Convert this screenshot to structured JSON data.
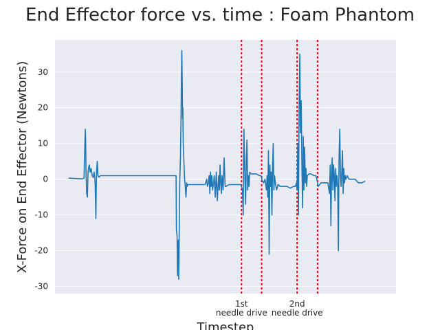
{
  "chart_data": {
    "type": "line",
    "title": "End Effector force vs. time : Foam Phantom",
    "xlabel": "Timestep",
    "ylabel": "X-Force on End Effector (Newtons)",
    "ylim": [
      -32,
      39
    ],
    "xlim": [
      0,
      1000
    ],
    "grid": true,
    "yticks": [
      30,
      20,
      10,
      0,
      -10,
      -20,
      -30
    ],
    "xtick_labels": [
      "1st\nneedle drive",
      "2nd\nneedle drive"
    ],
    "xtick_positions": [
      547,
      710
    ],
    "vlines": [
      547,
      606,
      710,
      770
    ],
    "vline_color": "#e8000b",
    "line_color": "#1f77b4",
    "background": "#eaeaf2",
    "series": [
      {
        "points": [
          [
            40,
            0.3
          ],
          [
            60,
            0.2
          ],
          [
            80,
            0.1
          ],
          [
            85,
            0.3
          ],
          [
            87,
            8
          ],
          [
            89,
            14
          ],
          [
            90,
            11
          ],
          [
            91,
            2
          ],
          [
            93,
            -4
          ],
          [
            95,
            -5
          ],
          [
            97,
            2
          ],
          [
            99,
            3.5
          ],
          [
            101,
            4
          ],
          [
            103,
            2
          ],
          [
            106,
            3
          ],
          [
            109,
            1
          ],
          [
            112,
            0.5
          ],
          [
            115,
            2
          ],
          [
            117,
            0
          ],
          [
            118,
            -2
          ],
          [
            120,
            -11
          ],
          [
            121,
            -2
          ],
          [
            122,
            2
          ],
          [
            124,
            5
          ],
          [
            126,
            1
          ],
          [
            129,
            0.6
          ],
          [
            133,
            1
          ],
          [
            180,
            1
          ],
          [
            240,
            1
          ],
          [
            300,
            1
          ],
          [
            350,
            1
          ],
          [
            355,
            1
          ],
          [
            356,
            -14
          ],
          [
            358,
            -16
          ],
          [
            359,
            -27
          ],
          [
            360,
            -18
          ],
          [
            362,
            -17
          ],
          [
            363,
            -28
          ],
          [
            364,
            -20
          ],
          [
            365,
            -8
          ],
          [
            366,
            0
          ],
          [
            368,
            6
          ],
          [
            370,
            20
          ],
          [
            371,
            30
          ],
          [
            372,
            36
          ],
          [
            373,
            28
          ],
          [
            374,
            17
          ],
          [
            375,
            20
          ],
          [
            376,
            10
          ],
          [
            378,
            5
          ],
          [
            380,
            0
          ],
          [
            382,
            -2
          ],
          [
            384,
            -5
          ],
          [
            386,
            -1
          ],
          [
            388,
            -2
          ],
          [
            390,
            -1.5
          ],
          [
            400,
            -1.5
          ],
          [
            420,
            -1.5
          ],
          [
            440,
            -1.5
          ],
          [
            445,
            0
          ],
          [
            447,
            -2
          ],
          [
            450,
            -1
          ],
          [
            452,
            1
          ],
          [
            454,
            -4
          ],
          [
            456,
            2
          ],
          [
            458,
            -2
          ],
          [
            460,
            1
          ],
          [
            462,
            -3
          ],
          [
            465,
            -1
          ],
          [
            467,
            1
          ],
          [
            470,
            -5
          ],
          [
            473,
            2
          ],
          [
            476,
            -6
          ],
          [
            478,
            -2
          ],
          [
            480,
            1
          ],
          [
            482,
            -3
          ],
          [
            484,
            4
          ],
          [
            486,
            -1
          ],
          [
            488,
            -4
          ],
          [
            490,
            1
          ],
          [
            493,
            -3
          ],
          [
            496,
            6
          ],
          [
            499,
            -2
          ],
          [
            502,
            -2
          ],
          [
            510,
            -1.5
          ],
          [
            520,
            -1.5
          ],
          [
            530,
            -1.5
          ],
          [
            545,
            -1.5
          ],
          [
            550,
            -3
          ],
          [
            552,
            -10
          ],
          [
            553,
            5
          ],
          [
            554,
            14
          ],
          [
            555,
            8
          ],
          [
            557,
            0
          ],
          [
            559,
            -7
          ],
          [
            561,
            6
          ],
          [
            563,
            11
          ],
          [
            565,
            -3
          ],
          [
            567,
            1
          ],
          [
            569,
            -2
          ],
          [
            571,
            2
          ],
          [
            575,
            1.5
          ],
          [
            580,
            1.5
          ],
          [
            590,
            1.5
          ],
          [
            600,
            1
          ],
          [
            604,
            1
          ],
          [
            608,
            -0.5
          ],
          [
            612,
            -1
          ],
          [
            616,
            0
          ],
          [
            620,
            -3
          ],
          [
            622,
            1
          ],
          [
            624,
            -5
          ],
          [
            626,
            8
          ],
          [
            628,
            -21
          ],
          [
            630,
            4
          ],
          [
            632,
            -2
          ],
          [
            634,
            2
          ],
          [
            636,
            -10
          ],
          [
            638,
            3
          ],
          [
            640,
            10
          ],
          [
            642,
            -3
          ],
          [
            644,
            1
          ],
          [
            646,
            -1
          ],
          [
            648,
            -2
          ],
          [
            650,
            -3
          ],
          [
            654,
            -1.5
          ],
          [
            660,
            -2
          ],
          [
            670,
            -2
          ],
          [
            680,
            -2
          ],
          [
            690,
            -2.5
          ],
          [
            700,
            -2
          ],
          [
            705,
            -2
          ],
          [
            708,
            -1
          ],
          [
            710,
            -3
          ],
          [
            712,
            10
          ],
          [
            714,
            -10
          ],
          [
            716,
            20
          ],
          [
            718,
            35
          ],
          [
            720,
            13
          ],
          [
            722,
            22
          ],
          [
            724,
            5
          ],
          [
            726,
            -8
          ],
          [
            728,
            12
          ],
          [
            730,
            -3
          ],
          [
            732,
            9
          ],
          [
            734,
            -1
          ],
          [
            736,
            3
          ],
          [
            738,
            -2
          ],
          [
            740,
            1
          ],
          [
            745,
            1.5
          ],
          [
            750,
            1.5
          ],
          [
            760,
            1
          ],
          [
            765,
            1
          ],
          [
            768,
            0
          ],
          [
            772,
            -2
          ],
          [
            780,
            -1
          ],
          [
            790,
            -1
          ],
          [
            800,
            -1
          ],
          [
            805,
            -4
          ],
          [
            807,
            4
          ],
          [
            809,
            -13
          ],
          [
            811,
            2
          ],
          [
            813,
            6
          ],
          [
            815,
            -3
          ],
          [
            817,
            4
          ],
          [
            819,
            1
          ],
          [
            821,
            -6
          ],
          [
            823,
            3
          ],
          [
            825,
            -2
          ],
          [
            827,
            1
          ],
          [
            829,
            -2
          ],
          [
            831,
            -20
          ],
          [
            832,
            -4
          ],
          [
            833,
            6
          ],
          [
            835,
            14
          ],
          [
            837,
            1
          ],
          [
            839,
            -2
          ],
          [
            841,
            2
          ],
          [
            843,
            8
          ],
          [
            845,
            -4
          ],
          [
            847,
            3
          ],
          [
            849,
            -1
          ],
          [
            851,
            1
          ],
          [
            853,
            0
          ],
          [
            857,
            1
          ],
          [
            862,
            0
          ],
          [
            870,
            0
          ],
          [
            880,
            0
          ],
          [
            890,
            -1
          ],
          [
            900,
            -1
          ],
          [
            910,
            -0.5
          ]
        ]
      }
    ]
  }
}
